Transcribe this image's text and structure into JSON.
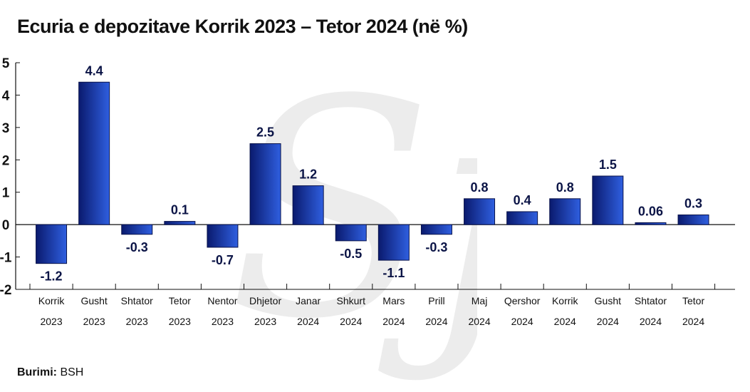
{
  "title": "Ecuria e depozitave Korrik 2023 – Tetor 2024 (në %)",
  "source": {
    "label": "Burimi:",
    "value": "BSH"
  },
  "watermark_text": "Sj",
  "chart_data": {
    "type": "bar",
    "title": "Ecuria e depozitave Korrik 2023 – Tetor 2024 (në %)",
    "xlabel": "",
    "ylabel": "",
    "ylim": [
      -2,
      5
    ],
    "yticks": [
      "5",
      "4",
      "3",
      "2",
      "1",
      "0",
      "-1",
      "-2"
    ],
    "grid": false,
    "legend": "none",
    "bar_color_top": "#0a1a6e",
    "bar_color_bottom": "#2f5fe0",
    "categories": [
      [
        "Korrik",
        "2023"
      ],
      [
        "Gusht",
        "2023"
      ],
      [
        "Shtator",
        "2023"
      ],
      [
        "Tetor",
        "2023"
      ],
      [
        "Nentor",
        "2023"
      ],
      [
        "Dhjetor",
        "2023"
      ],
      [
        "Janar",
        "2024"
      ],
      [
        "Shkurt",
        "2024"
      ],
      [
        "Mars",
        "2024"
      ],
      [
        "Prill",
        "2024"
      ],
      [
        "Maj",
        "2024"
      ],
      [
        "Qershor",
        "2024"
      ],
      [
        "Korrik",
        "2024"
      ],
      [
        "Gusht",
        "2024"
      ],
      [
        "Shtator",
        "2024"
      ],
      [
        "Tetor",
        "2024"
      ]
    ],
    "values": [
      -1.2,
      4.4,
      -0.3,
      0.1,
      -0.7,
      2.5,
      1.2,
      -0.5,
      -1.1,
      -0.3,
      0.8,
      0.4,
      0.8,
      1.5,
      0.06,
      0.3
    ],
    "value_labels": [
      "-1.2",
      "4.4",
      "-0.3",
      "0.1",
      "-0.7",
      "2.5",
      "1.2",
      "-0.5",
      "-1.1",
      "-0.3",
      "0.8",
      "0.4",
      "0.8",
      "1.5",
      "0.06",
      "0.3"
    ]
  }
}
